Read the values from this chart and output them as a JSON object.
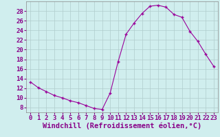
{
  "x": [
    0,
    1,
    2,
    3,
    4,
    5,
    6,
    7,
    8,
    9,
    10,
    11,
    12,
    13,
    14,
    15,
    16,
    17,
    18,
    19,
    20,
    21,
    22,
    23
  ],
  "y": [
    13.3,
    12.1,
    11.3,
    10.5,
    10.0,
    9.4,
    9.0,
    8.4,
    7.8,
    7.6,
    11.0,
    17.5,
    23.2,
    25.5,
    27.5,
    29.0,
    29.2,
    28.8,
    27.3,
    26.7,
    23.8,
    21.7,
    19.0,
    16.5
  ],
  "xlabel": "Windchill (Refroidissement éolien,°C)",
  "xlim": [
    -0.5,
    23.5
  ],
  "ylim": [
    7,
    30
  ],
  "yticks": [
    8,
    10,
    12,
    14,
    16,
    18,
    20,
    22,
    24,
    26,
    28
  ],
  "xticks": [
    0,
    1,
    2,
    3,
    4,
    5,
    6,
    7,
    8,
    9,
    10,
    11,
    12,
    13,
    14,
    15,
    16,
    17,
    18,
    19,
    20,
    21,
    22,
    23
  ],
  "line_color": "#990099",
  "marker": "+",
  "bg_color": "#d0eeee",
  "grid_color": "#b0cccc",
  "label_fontsize": 7.5,
  "tick_fontsize": 6.5
}
